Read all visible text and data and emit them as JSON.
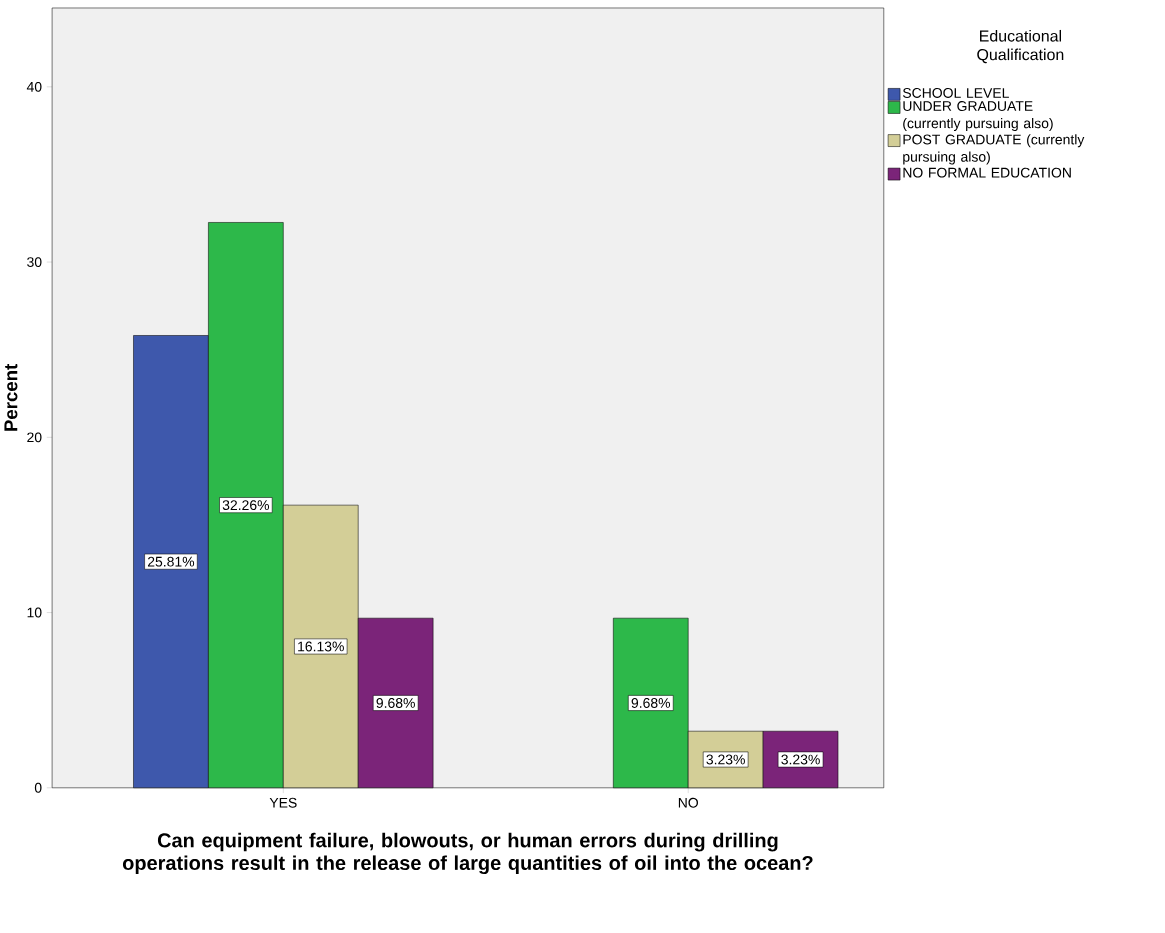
{
  "chart_data": {
    "type": "bar",
    "xlabel": "Can equipment failure, blowouts, or human errors during drilling operations result in the release of large quantities of oil into the ocean?",
    "ylabel": "Percent",
    "legend_title": "Educational Qualification",
    "categories": [
      "YES",
      "NO"
    ],
    "series": [
      {
        "name": "SCHOOL LEVEL",
        "color": "#3e58ac",
        "values": [
          25.81,
          null
        ],
        "value_labels": [
          "25.81%",
          null
        ]
      },
      {
        "name": "UNDER GRADUATE (currently pursuing also)",
        "color": "#2db84a",
        "values": [
          32.26,
          9.68
        ],
        "value_labels": [
          "32.26%",
          "9.68%"
        ]
      },
      {
        "name": "POST GRADUATE (currently pursuing also)",
        "color": "#d3ce97",
        "values": [
          16.13,
          3.23
        ],
        "value_labels": [
          "16.13%",
          "3.23%"
        ]
      },
      {
        "name": "NO FORMAL EDUCATION",
        "color": "#7b2479",
        "values": [
          9.68,
          3.23
        ],
        "value_labels": [
          "9.68%",
          "3.23%"
        ]
      }
    ],
    "ylim": [
      0,
      44.5
    ],
    "yticks": [
      0,
      10,
      20,
      30,
      40
    ],
    "legend": "top right"
  }
}
